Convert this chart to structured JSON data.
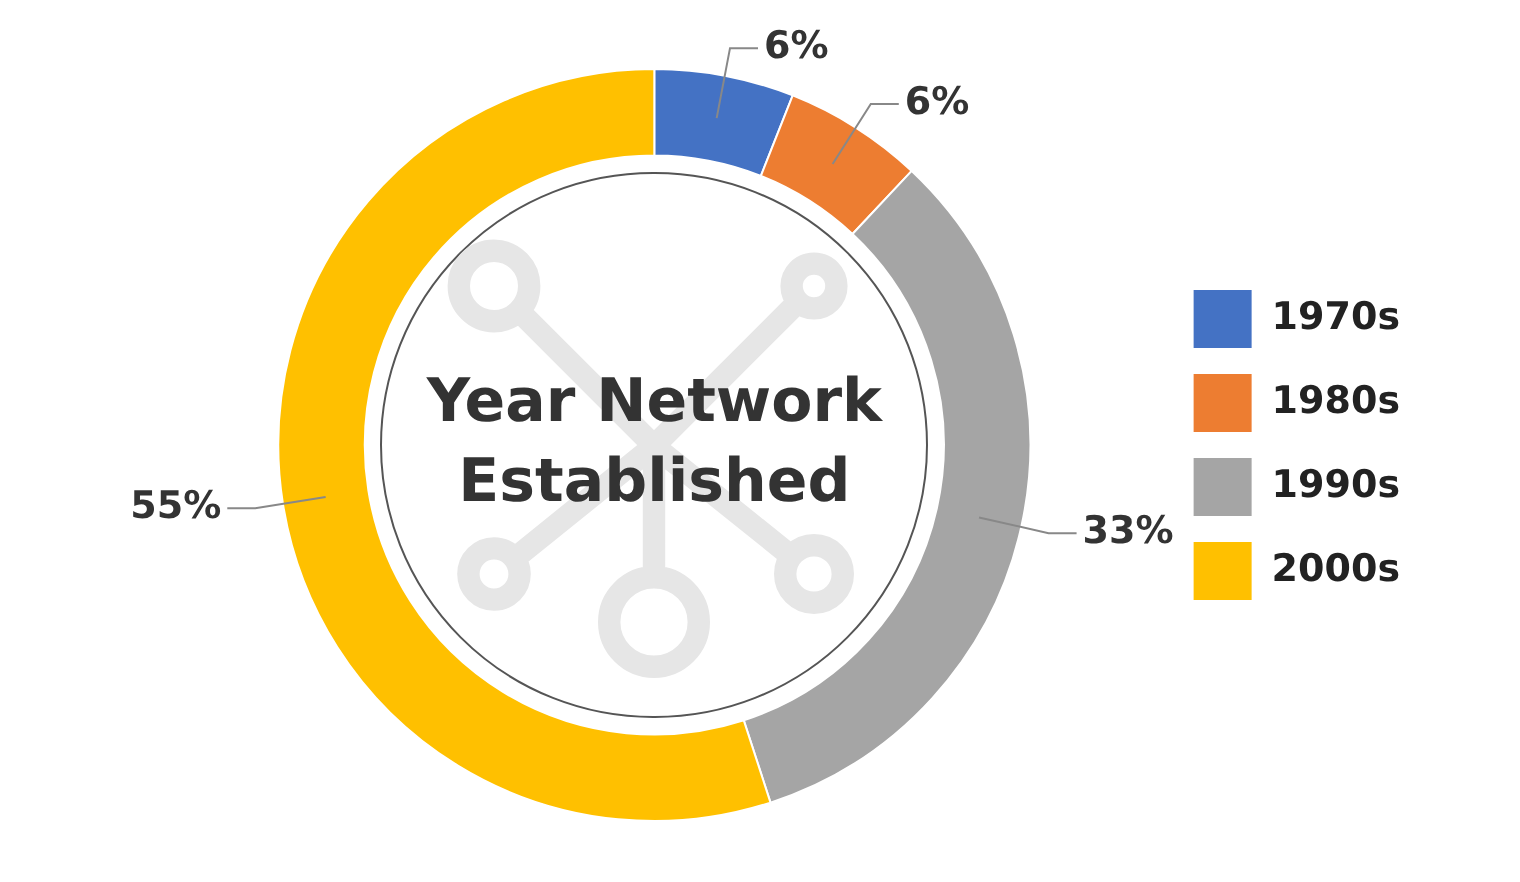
{
  "chart_data": {
    "type": "donut",
    "title": "Year Network Established",
    "categories": [
      "1970s",
      "1980s",
      "1990s",
      "2000s"
    ],
    "values": [
      6,
      6,
      33,
      55
    ],
    "colors": [
      "#4472c4",
      "#ed7d31",
      "#a5a5a5",
      "#ffc000"
    ],
    "value_labels": [
      "6%",
      "6%",
      "33%",
      "55%"
    ],
    "legend": "right"
  }
}
